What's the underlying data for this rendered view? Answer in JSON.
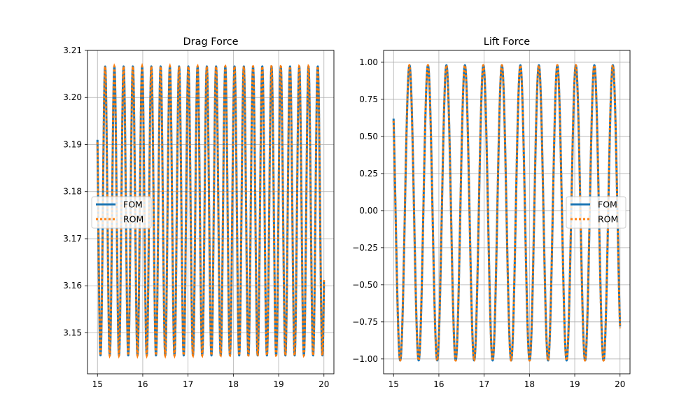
{
  "chart_data": [
    {
      "type": "line",
      "title": "Drag Force",
      "xlabel": "",
      "ylabel": "",
      "xlim": [
        14.78,
        20.22
      ],
      "ylim": [
        3.1413,
        3.21
      ],
      "xticks": [
        15,
        16,
        17,
        18,
        19,
        20
      ],
      "xtick_labels": [
        "15",
        "16",
        "17",
        "18",
        "19",
        "20"
      ],
      "yticks": [
        3.15,
        3.16,
        3.17,
        3.18,
        3.19,
        3.2,
        3.21
      ],
      "ytick_labels": [
        "3.15",
        "3.16",
        "3.17",
        "3.18",
        "3.19",
        "3.20",
        "3.21"
      ],
      "grid": true,
      "legend": {
        "position": "center-left",
        "entries": [
          "FOM",
          "ROM"
        ]
      },
      "signal": {
        "x_start": 15.0,
        "x_end": 20.0,
        "start_value": 3.191,
        "mean": 3.1759,
        "amplitude": 0.0307,
        "cycles": 24.5,
        "colors": {
          "FOM": "#1f77b4",
          "ROM": "#ff7f0e"
        }
      },
      "series": [
        {
          "name": "FOM",
          "style": "solid",
          "color": "#1f77b4"
        },
        {
          "name": "ROM",
          "style": "dotted",
          "color": "#ff7f0e"
        }
      ]
    },
    {
      "type": "line",
      "title": "Lift Force",
      "xlabel": "",
      "ylabel": "",
      "xlim": [
        14.78,
        20.22
      ],
      "ylim": [
        -1.1,
        1.08
      ],
      "xticks": [
        15,
        16,
        17,
        18,
        19,
        20
      ],
      "xtick_labels": [
        "15",
        "16",
        "17",
        "18",
        "19",
        "20"
      ],
      "yticks": [
        -1.0,
        -0.75,
        -0.5,
        -0.25,
        0.0,
        0.25,
        0.5,
        0.75,
        1.0
      ],
      "ytick_labels": [
        "−1.00",
        "−0.75",
        "−0.50",
        "−0.25",
        "0.00",
        "0.25",
        "0.50",
        "0.75",
        "1.00"
      ],
      "grid": true,
      "legend": {
        "position": "center-right",
        "entries": [
          "FOM",
          "ROM"
        ]
      },
      "signal": {
        "x_start": 15.0,
        "x_end": 20.0,
        "start_value": 0.62,
        "mean": -0.015,
        "amplitude": 0.995,
        "cycles": 12.25,
        "colors": {
          "FOM": "#1f77b4",
          "ROM": "#ff7f0e"
        }
      },
      "series": [
        {
          "name": "FOM",
          "style": "solid",
          "color": "#1f77b4"
        },
        {
          "name": "ROM",
          "style": "dotted",
          "color": "#ff7f0e"
        }
      ]
    }
  ]
}
